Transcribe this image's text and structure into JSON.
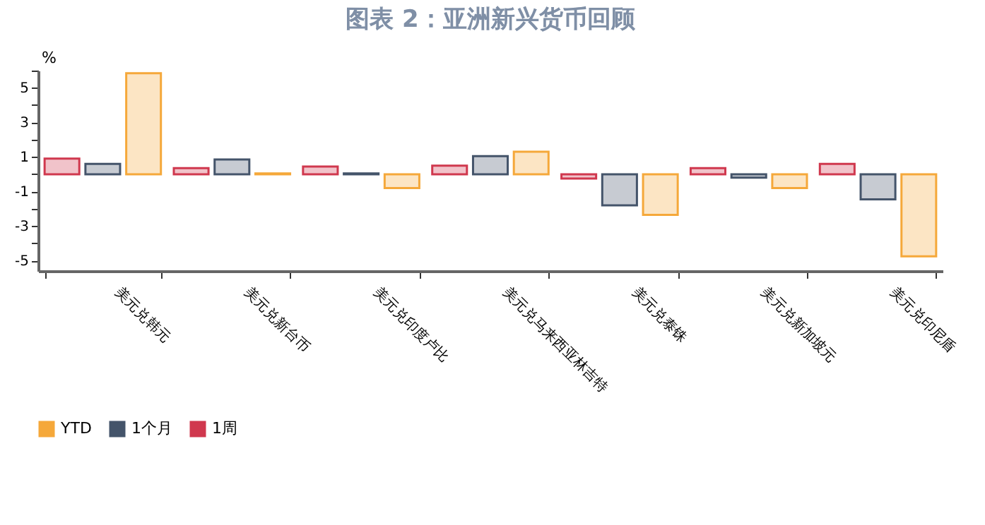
{
  "chart_data": {
    "type": "bar",
    "title": "图表 2：亚洲新兴货币回顾",
    "ylabel": "%",
    "categories": [
      "美元兑韩元",
      "美元兑新台币",
      "美元兑印度卢比",
      "美元兑马来西亚林吉特",
      "美元兑泰铢",
      "美元兑新加坡元",
      "美元兑印尼盾"
    ],
    "series": [
      {
        "name": "1周",
        "color": "#d0384e",
        "values": [
          0.9,
          0.35,
          0.45,
          0.5,
          -0.25,
          0.35,
          0.6
        ]
      },
      {
        "name": "1个月",
        "color": "#44546a",
        "values": [
          0.6,
          0.85,
          0.05,
          1.05,
          -1.8,
          -0.2,
          -1.45
        ]
      },
      {
        "name": "YTD",
        "color": "#f5a83a",
        "values": [
          5.85,
          0.05,
          -0.8,
          1.3,
          -2.35,
          -0.8,
          -4.75
        ]
      }
    ],
    "ylim": [
      -5.6,
      6
    ],
    "yticks": [
      {
        "value": 6,
        "label": null
      },
      5,
      {
        "value": 4,
        "label": null
      },
      3,
      {
        "value": 2,
        "label": null
      },
      1,
      {
        "value": 0,
        "label": null
      },
      -1,
      {
        "value": -2,
        "label": null
      },
      -3,
      {
        "value": -4,
        "label": null
      },
      -5
    ],
    "legend": "bottom",
    "grid": false
  }
}
